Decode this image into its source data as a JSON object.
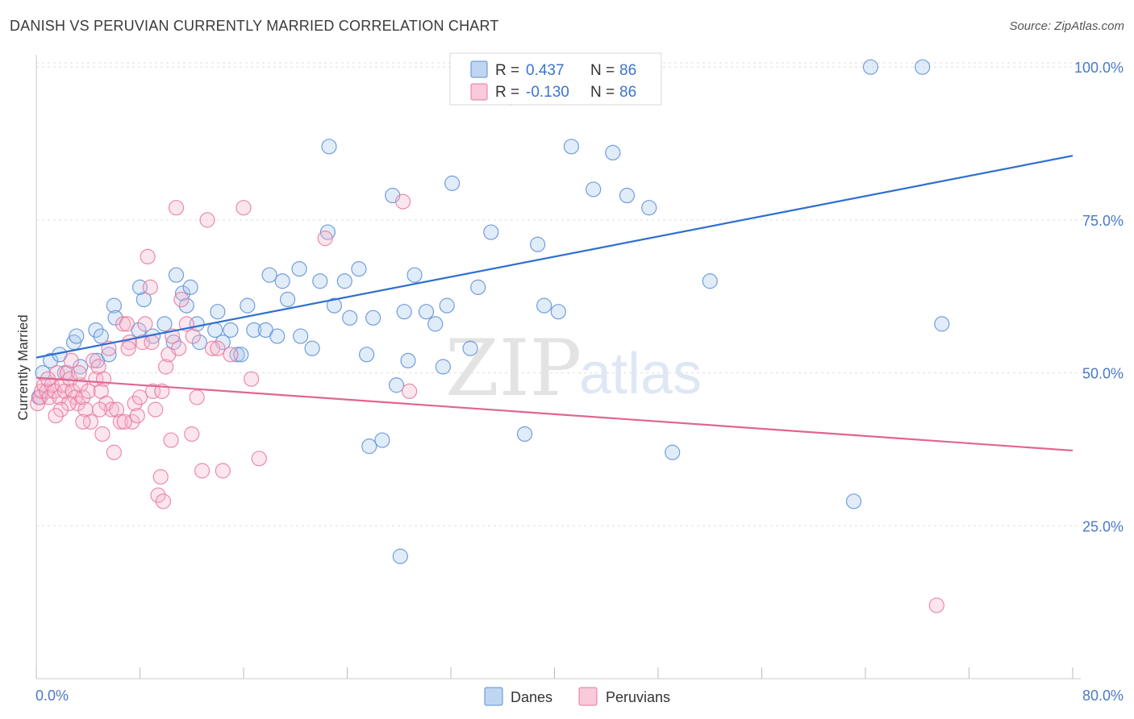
{
  "title": "DANISH VS PERUVIAN CURRENTLY MARRIED CORRELATION CHART",
  "source": "Source: ZipAtlas.com",
  "watermark": {
    "zip": "ZIP",
    "atlas": "atlas"
  },
  "colors": {
    "danes": "#5b8ed6",
    "danes_fill": "#aac8ee",
    "danes_line": "#2f6fd0",
    "peruvians": "#e8789e",
    "peruvians_fill": "#f6b8cd",
    "peruvians_line": "#e0668f",
    "tick_text": "#4a78c9",
    "grid": "#dddddd"
  },
  "legend": {
    "rows": [
      {
        "r_label": "R = ",
        "r_value": " 0.437",
        "n_label": "N = ",
        "n_value": "86"
      },
      {
        "r_label": "R = ",
        "r_value": "-0.130",
        "n_label": "N = ",
        "n_value": "86"
      }
    ]
  },
  "bottom_legend": [
    "Danes",
    "Peruvians"
  ],
  "chart_data": {
    "type": "scatter",
    "title": "DANISH VS PERUVIAN CURRENTLY MARRIED CORRELATION CHART",
    "xlabel": "",
    "ylabel": "Currently Married",
    "xlim": [
      0,
      80
    ],
    "ylim": [
      0,
      102
    ],
    "x_tick_labels": [
      "0.0%",
      "80.0%"
    ],
    "y_ticks": [
      25,
      50,
      75,
      100
    ],
    "y_tick_labels": [
      "25.0%",
      "50.0%",
      "75.0%",
      "100.0%"
    ],
    "grid": true,
    "legend_position": "top-center",
    "series": [
      {
        "name": "Danes",
        "r": 0.437,
        "n": 86,
        "trend": {
          "x": [
            0,
            80
          ],
          "y": [
            52.5,
            85.5
          ]
        },
        "points": [
          [
            0.2,
            46
          ],
          [
            0.5,
            50
          ],
          [
            1.1,
            52
          ],
          [
            1.8,
            53
          ],
          [
            2.9,
            55
          ],
          [
            3.1,
            56
          ],
          [
            4.7,
            52
          ],
          [
            5.6,
            53
          ],
          [
            3.4,
            51
          ],
          [
            2.2,
            50
          ],
          [
            4.6,
            57
          ],
          [
            5.0,
            56
          ],
          [
            6.0,
            61
          ],
          [
            6.1,
            59
          ],
          [
            7.9,
            57
          ],
          [
            8.3,
            62
          ],
          [
            8.0,
            64
          ],
          [
            9.0,
            56
          ],
          [
            9.9,
            58
          ],
          [
            10.6,
            55
          ],
          [
            10.8,
            66
          ],
          [
            11.3,
            63
          ],
          [
            11.6,
            61
          ],
          [
            12.4,
            58
          ],
          [
            12.6,
            55
          ],
          [
            13.8,
            57
          ],
          [
            14.0,
            60
          ],
          [
            14.4,
            55
          ],
          [
            15.0,
            57
          ],
          [
            15.5,
            53
          ],
          [
            15.8,
            53
          ],
          [
            16.3,
            61
          ],
          [
            16.8,
            57
          ],
          [
            17.7,
            57
          ],
          [
            18.0,
            66
          ],
          [
            18.6,
            56
          ],
          [
            19.0,
            65
          ],
          [
            19.4,
            62
          ],
          [
            20.3,
            67
          ],
          [
            20.4,
            56
          ],
          [
            21.3,
            54
          ],
          [
            21.9,
            65
          ],
          [
            22.5,
            73
          ],
          [
            22.6,
            87
          ],
          [
            23.0,
            61
          ],
          [
            23.8,
            65
          ],
          [
            24.2,
            59
          ],
          [
            24.9,
            67
          ],
          [
            25.5,
            53
          ],
          [
            26.0,
            59
          ],
          [
            25.7,
            38
          ],
          [
            26.7,
            39
          ],
          [
            27.5,
            79
          ],
          [
            27.8,
            48
          ],
          [
            28.7,
            52
          ],
          [
            29.2,
            66
          ],
          [
            30.1,
            60
          ],
          [
            30.8,
            58
          ],
          [
            31.4,
            51
          ],
          [
            31.7,
            61
          ],
          [
            32.1,
            81
          ],
          [
            33.5,
            54
          ],
          [
            34.1,
            64
          ],
          [
            35.1,
            73
          ],
          [
            37.7,
            40
          ],
          [
            38.7,
            71
          ],
          [
            39.2,
            61
          ],
          [
            41.3,
            87
          ],
          [
            43.0,
            80
          ],
          [
            44.5,
            86
          ],
          [
            45.6,
            79
          ],
          [
            47.3,
            77
          ],
          [
            47.6,
            100
          ],
          [
            49.1,
            37
          ],
          [
            52.0,
            65
          ],
          [
            64.4,
            100
          ],
          [
            68.4,
            100
          ],
          [
            69.9,
            58
          ],
          [
            63.1,
            29
          ],
          [
            28.1,
            20
          ],
          [
            11.9,
            64
          ],
          [
            36.6,
            95
          ],
          [
            38.2,
            100
          ],
          [
            43.9,
            100
          ],
          [
            40.3,
            60
          ],
          [
            28.4,
            60
          ]
        ]
      },
      {
        "name": "Peruvians",
        "r": -0.13,
        "n": 86,
        "trend": {
          "x": [
            0,
            80
          ],
          "y": [
            49.2,
            37.3
          ]
        },
        "points": [
          [
            0.1,
            45
          ],
          [
            0.3,
            46
          ],
          [
            0.4,
            47
          ],
          [
            0.6,
            48
          ],
          [
            0.8,
            47
          ],
          [
            1.0,
            46
          ],
          [
            1.2,
            48
          ],
          [
            1.4,
            47
          ],
          [
            1.6,
            50
          ],
          [
            1.8,
            46
          ],
          [
            2.0,
            48
          ],
          [
            2.2,
            47
          ],
          [
            2.4,
            50
          ],
          [
            2.6,
            49
          ],
          [
            2.8,
            47
          ],
          [
            3.0,
            46
          ],
          [
            3.2,
            45
          ],
          [
            3.4,
            48
          ],
          [
            3.6,
            46
          ],
          [
            3.8,
            44
          ],
          [
            4.0,
            47
          ],
          [
            4.2,
            42
          ],
          [
            4.4,
            52
          ],
          [
            4.6,
            49
          ],
          [
            4.8,
            51
          ],
          [
            5.0,
            47
          ],
          [
            5.2,
            49
          ],
          [
            5.4,
            45
          ],
          [
            5.6,
            54
          ],
          [
            5.8,
            44
          ],
          [
            6.0,
            37
          ],
          [
            6.2,
            44
          ],
          [
            6.5,
            42
          ],
          [
            6.7,
            58
          ],
          [
            7.0,
            58
          ],
          [
            7.2,
            55
          ],
          [
            7.4,
            42
          ],
          [
            7.6,
            45
          ],
          [
            7.8,
            43
          ],
          [
            8.0,
            46
          ],
          [
            8.2,
            55
          ],
          [
            8.4,
            58
          ],
          [
            8.6,
            69
          ],
          [
            8.8,
            64
          ],
          [
            9.0,
            47
          ],
          [
            9.2,
            44
          ],
          [
            9.4,
            30
          ],
          [
            9.6,
            33
          ],
          [
            9.8,
            29
          ],
          [
            10.0,
            51
          ],
          [
            10.2,
            53
          ],
          [
            10.4,
            39
          ],
          [
            10.8,
            77
          ],
          [
            11.2,
            62
          ],
          [
            11.6,
            58
          ],
          [
            12.0,
            40
          ],
          [
            12.4,
            46
          ],
          [
            12.8,
            34
          ],
          [
            13.2,
            75
          ],
          [
            13.6,
            54
          ],
          [
            14.0,
            54
          ],
          [
            14.4,
            34
          ],
          [
            15.0,
            53
          ],
          [
            16.0,
            77
          ],
          [
            16.6,
            49
          ],
          [
            17.2,
            36
          ],
          [
            22.3,
            72
          ],
          [
            28.3,
            78
          ],
          [
            28.8,
            47
          ],
          [
            69.5,
            12
          ],
          [
            2.5,
            45
          ],
          [
            3.6,
            42
          ],
          [
            5.1,
            40
          ],
          [
            6.8,
            42
          ],
          [
            8.9,
            55
          ],
          [
            9.7,
            47
          ],
          [
            10.5,
            56
          ],
          [
            11.0,
            54
          ],
          [
            12.1,
            56
          ],
          [
            7.1,
            54
          ],
          [
            4.9,
            44
          ],
          [
            3.3,
            50
          ],
          [
            1.9,
            44
          ],
          [
            0.9,
            49
          ],
          [
            1.5,
            43
          ],
          [
            2.7,
            52
          ]
        ]
      }
    ]
  }
}
